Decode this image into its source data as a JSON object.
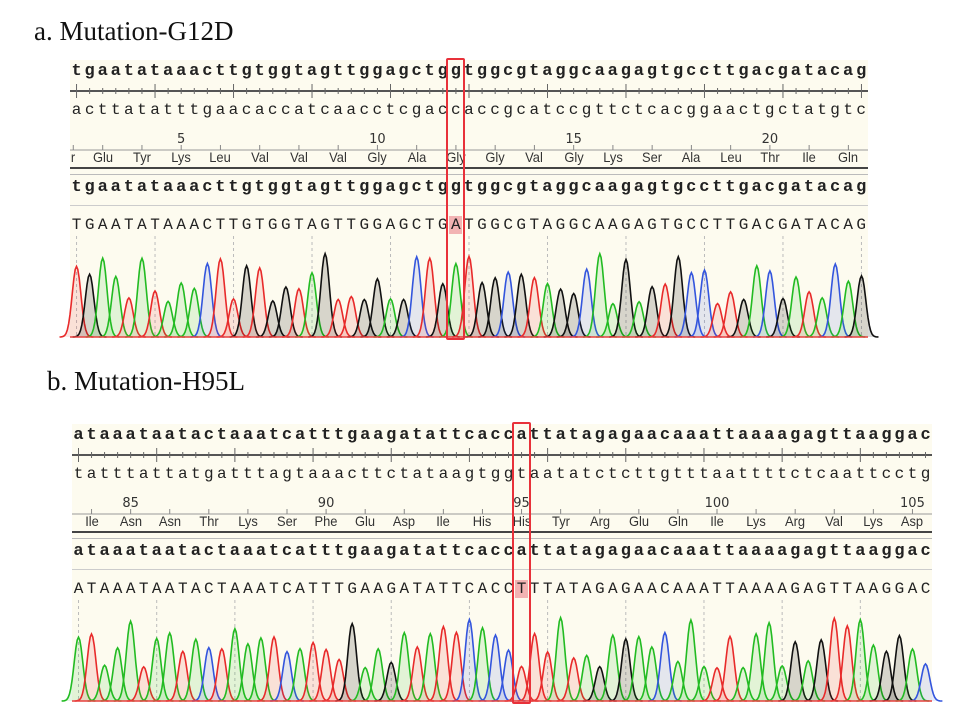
{
  "panels": [
    {
      "caption": "a.  Mutation-G12D",
      "reference_top": "tgaatataaacttgtggtagttggagctggtggcgtaggcaagagtgccttgacgatacag",
      "reference_complement": "acttatatttgaacaccatcaacctcgaccaccgcatccgttctcacggaactgctatgtc",
      "amino_acids": [
        "r",
        "Glu",
        "Tyr",
        "Lys",
        "Leu",
        "Val",
        "Val",
        "Val",
        "Gly",
        "Ala",
        "Gly",
        "Gly",
        "Val",
        "Gly",
        "Lys",
        "Ser",
        "Ala",
        "Leu",
        "Thr",
        "Ile",
        "Gln"
      ],
      "residue_numbers": [
        {
          "label": "5",
          "aa_index": 3
        },
        {
          "label": "10",
          "aa_index": 8
        },
        {
          "label": "15",
          "aa_index": 13
        },
        {
          "label": "20",
          "aa_index": 18
        }
      ],
      "reference_second": "tgaatataaacttgtggtagttggagctggtggcgtaggcaagagtgccttgacgatacag",
      "called_sequence": "TGAATATAAACTTGTGGTAGTTGGAGCTGATGGCGTAGGCAAGAGTGCCTTGACGATACAG",
      "mutation_base_index": 29,
      "codon_frame_offset": 1
    },
    {
      "caption": "b. Mutation-H95L",
      "reference_top": "ataaataatactaaatcatttgaagatattcaccattatagagaacaaattaaaagagttaaggac",
      "reference_complement": "tatttattatgatttagtaaacttctataagtggtaatatctcttgtttaattttctcaattcctg",
      "amino_acids": [
        "Ile",
        "Asn",
        "Asn",
        "Thr",
        "Lys",
        "Ser",
        "Phe",
        "Glu",
        "Asp",
        "Ile",
        "His",
        "His",
        "Tyr",
        "Arg",
        "Glu",
        "Gln",
        "Ile",
        "Lys",
        "Arg",
        "Val",
        "Lys",
        "Asp"
      ],
      "residue_numbers": [
        {
          "label": "85",
          "aa_index": 1
        },
        {
          "label": "90",
          "aa_index": 6
        },
        {
          "label": "95",
          "aa_index": 11
        },
        {
          "label": "100",
          "aa_index": 16
        },
        {
          "label": "105",
          "aa_index": 21
        }
      ],
      "reference_second": "ataaataatactaaatcatttgaagatattcaccattatagagaacaaattaaaagagttaaggac",
      "called_sequence": "ATAAATAATACTAAATCATTTGAAGATATTCACCTTTATAGAGAACAAATTAAAAGAGTTAAGGAC",
      "mutation_base_index": 34,
      "codon_frame_offset": 0
    }
  ],
  "colors": {
    "A": "#22bb22",
    "C": "#3355dd",
    "G": "#111111",
    "T": "#e82a2a",
    "highlight_box": "#e8313a",
    "mutant_base_fill": "#f2b3b3"
  }
}
